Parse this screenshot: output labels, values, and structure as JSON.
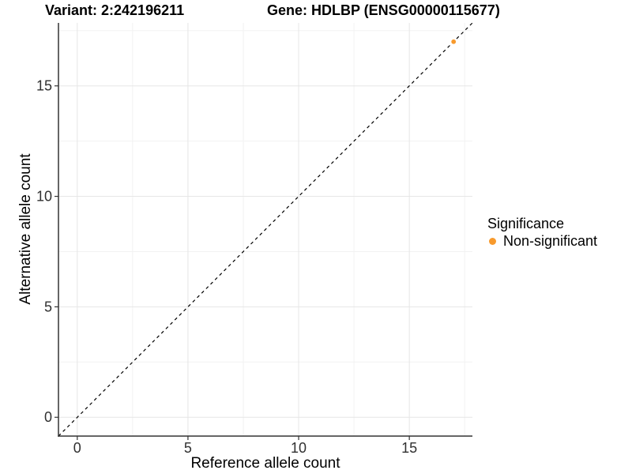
{
  "header": {
    "variant_title": "Variant: 2:242196211",
    "gene_title": "Gene: HDLBP (ENSG00000115677)"
  },
  "axes": {
    "x_label": "Reference allele count",
    "y_label": "Alternative allele count"
  },
  "legend": {
    "title": "Significance",
    "items": [
      {
        "label": "Non-significant",
        "color": "#F89A2D",
        "marker": "circle-icon"
      }
    ]
  },
  "chart_data": {
    "type": "scatter",
    "title": "Variant: 2:242196211 | Gene: HDLBP (ENSG00000115677)",
    "xlabel": "Reference allele count",
    "ylabel": "Alternative allele count",
    "xlim": [
      -0.85,
      17.85
    ],
    "ylim": [
      -0.85,
      17.85
    ],
    "x_major_ticks": [
      0,
      5,
      10,
      15
    ],
    "y_major_ticks": [
      0,
      5,
      10,
      15
    ],
    "x_minor_ticks": [
      2.5,
      7.5,
      12.5,
      17.5
    ],
    "y_minor_ticks": [
      2.5,
      7.5,
      12.5,
      17.5
    ],
    "grid": "major+minor",
    "legend_title": "Significance",
    "legend_position": "right",
    "series": [
      {
        "name": "Non-significant",
        "color": "#F89A2D",
        "points": [
          {
            "x": 17,
            "y": 17
          }
        ]
      }
    ],
    "reference_line": {
      "kind": "identity",
      "slope": 1,
      "intercept": 0,
      "style": "dashed",
      "color": "#000000"
    },
    "style": {
      "grid_major_color": "#E6E6E6",
      "grid_minor_color": "#F2F2F2",
      "axis_line_color": "#333333",
      "tick_text_color": "#303030",
      "background": "#FFFFFF"
    }
  }
}
